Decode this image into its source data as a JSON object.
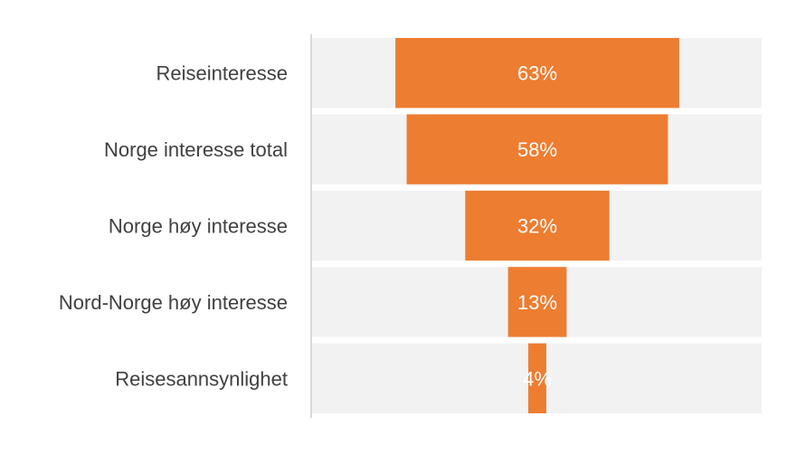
{
  "chart_data": {
    "type": "bar",
    "subtype": "funnel",
    "categories": [
      "Reiseinteresse",
      "Norge interesse total",
      "Norge høy interesse",
      "Nord-Norge høy interesse",
      "Reisesannsynlighet"
    ],
    "values": [
      63,
      58,
      32,
      13,
      4
    ],
    "data_labels": [
      "63%",
      "58%",
      "32%",
      "13%",
      "4%"
    ],
    "value_unit": "%",
    "xlim": [
      0,
      100
    ],
    "title": "",
    "xlabel": "",
    "ylabel": "",
    "legend": "none",
    "grid": false,
    "colors": {
      "bar": "#ED7D31",
      "band": "#F2F2F2",
      "axis": "#D9D9D9",
      "category_text": "#404040",
      "value_text": "#FFFFFF"
    }
  }
}
